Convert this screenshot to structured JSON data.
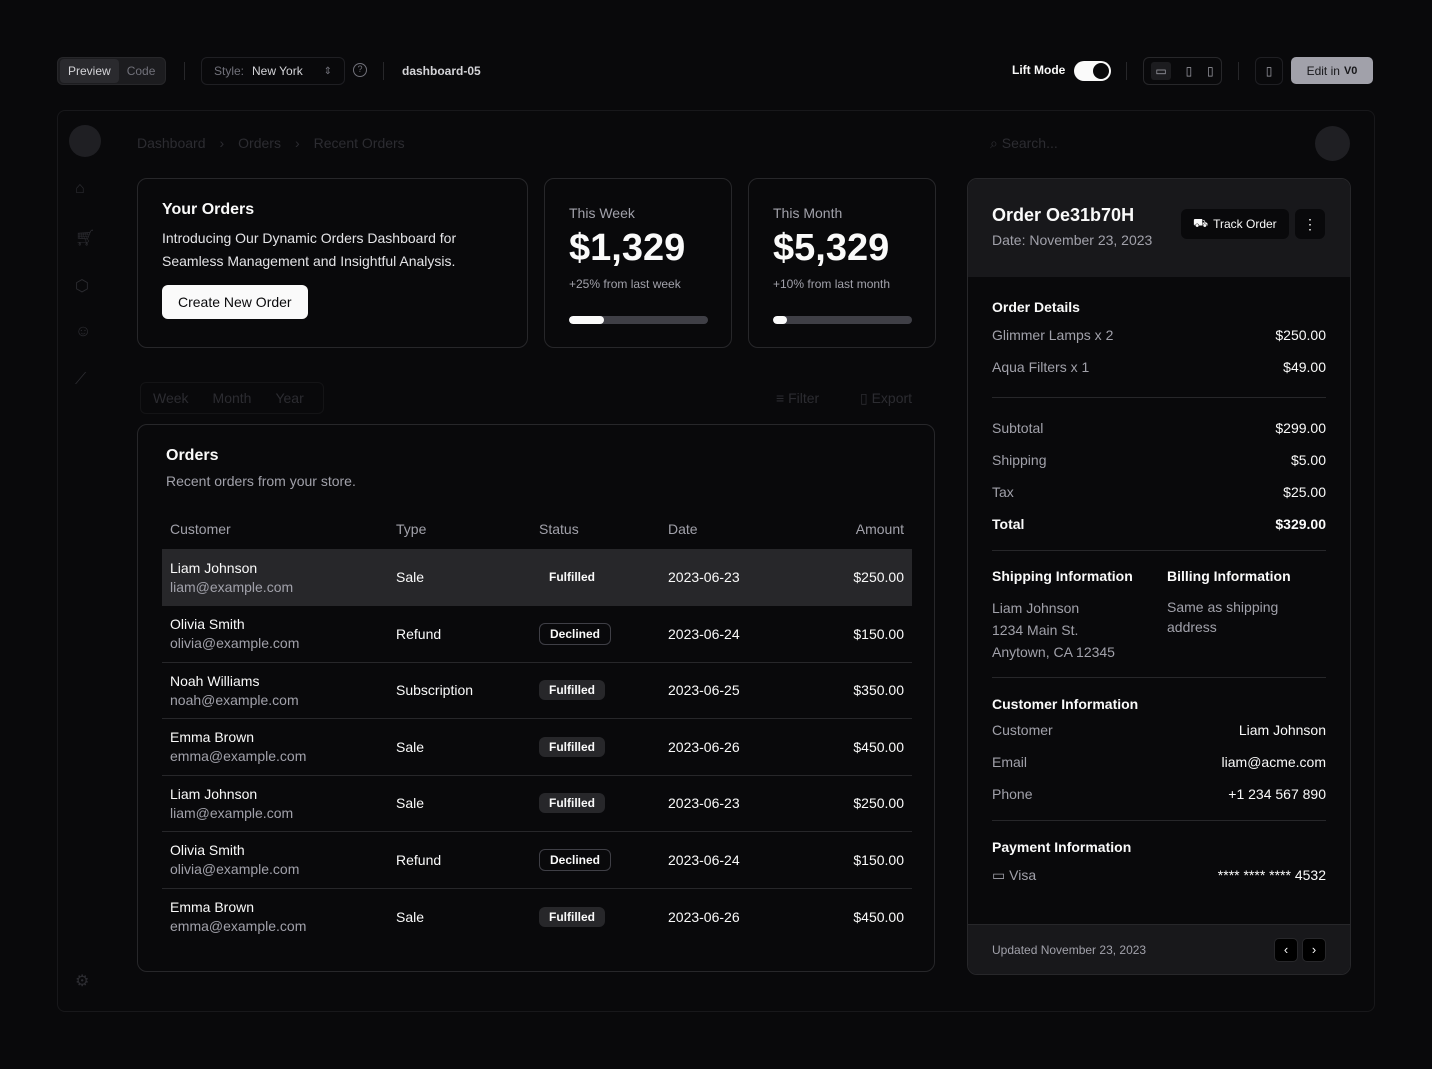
{
  "toolbar": {
    "preview": "Preview",
    "code": "Code",
    "style_label": "Style:",
    "style_value": "New York",
    "block_name": "dashboard-05",
    "lift_mode": "Lift Mode",
    "lift_mode_on": true,
    "edit_in": "Edit in",
    "v0_logo": "v0"
  },
  "breadcrumb": [
    "Dashboard",
    "Orders",
    "Recent Orders"
  ],
  "search": {
    "placeholder": "Search..."
  },
  "your_orders": {
    "title": "Your Orders",
    "description": "Introducing Our Dynamic Orders Dashboard for Seamless Management and Insightful Analysis.",
    "button": "Create New Order"
  },
  "stats": [
    {
      "label": "This Week",
      "value": "$1,329",
      "change": "+25% from last week",
      "progress": 25
    },
    {
      "label": "This Month",
      "value": "$5,329",
      "change": "+10% from last month",
      "progress": 10
    }
  ],
  "tabs": [
    "Week",
    "Month",
    "Year"
  ],
  "actions": {
    "filter": "Filter",
    "export": "Export"
  },
  "orders": {
    "title": "Orders",
    "subtitle": "Recent orders from your store.",
    "columns": [
      "Customer",
      "Type",
      "Status",
      "Date",
      "Amount"
    ],
    "rows": [
      {
        "name": "Liam Johnson",
        "email": "liam@example.com",
        "type": "Sale",
        "status": "Fulfilled",
        "date": "2023-06-23",
        "amount": "$250.00"
      },
      {
        "name": "Olivia Smith",
        "email": "olivia@example.com",
        "type": "Refund",
        "status": "Declined",
        "date": "2023-06-24",
        "amount": "$150.00"
      },
      {
        "name": "Noah Williams",
        "email": "noah@example.com",
        "type": "Subscription",
        "status": "Fulfilled",
        "date": "2023-06-25",
        "amount": "$350.00"
      },
      {
        "name": "Emma Brown",
        "email": "emma@example.com",
        "type": "Sale",
        "status": "Fulfilled",
        "date": "2023-06-26",
        "amount": "$450.00"
      },
      {
        "name": "Liam Johnson",
        "email": "liam@example.com",
        "type": "Sale",
        "status": "Fulfilled",
        "date": "2023-06-23",
        "amount": "$250.00"
      },
      {
        "name": "Olivia Smith",
        "email": "olivia@example.com",
        "type": "Refund",
        "status": "Declined",
        "date": "2023-06-24",
        "amount": "$150.00"
      },
      {
        "name": "Emma Brown",
        "email": "emma@example.com",
        "type": "Sale",
        "status": "Fulfilled",
        "date": "2023-06-26",
        "amount": "$450.00"
      }
    ]
  },
  "order_panel": {
    "title": "Order Oe31b70H",
    "date": "Date: November 23, 2023",
    "track": "Track Order",
    "details_title": "Order Details",
    "items": [
      {
        "label": "Glimmer Lamps x 2",
        "value": "$250.00"
      },
      {
        "label": "Aqua Filters x 1",
        "value": "$49.00"
      }
    ],
    "totals": [
      {
        "label": "Subtotal",
        "value": "$299.00"
      },
      {
        "label": "Shipping",
        "value": "$5.00"
      },
      {
        "label": "Tax",
        "value": "$25.00"
      },
      {
        "label": "Total",
        "value": "$329.00"
      }
    ],
    "shipping_title": "Shipping Information",
    "shipping_lines": [
      "Liam Johnson",
      "1234 Main St.",
      "Anytown, CA 12345"
    ],
    "billing_title": "Billing Information",
    "billing_text": "Same as shipping address",
    "customer_title": "Customer Information",
    "customer": [
      {
        "label": "Customer",
        "value": "Liam Johnson"
      },
      {
        "label": "Email",
        "value": "liam@acme.com"
      },
      {
        "label": "Phone",
        "value": "+1 234 567 890"
      }
    ],
    "payment_title": "Payment Information",
    "payment_method": "Visa",
    "card": "**** **** **** 4532",
    "updated": "Updated November 23, 2023"
  }
}
